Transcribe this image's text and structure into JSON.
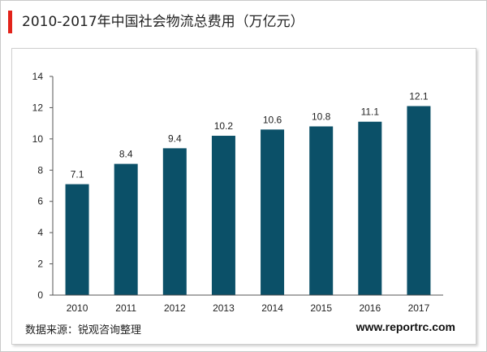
{
  "header": {
    "title": "2010-2017年中国社会物流总费用（万亿元）",
    "accent_color": "#e2231a"
  },
  "footer": {
    "source": "数据来源：锐观咨询整理",
    "website": "www.reportrc.com"
  },
  "chart_data": {
    "type": "bar",
    "title": "2010-2017年中国社会物流总费用（万亿元）",
    "categories": [
      "2010",
      "2011",
      "2012",
      "2013",
      "2014",
      "2015",
      "2016",
      "2017"
    ],
    "values": [
      7.1,
      8.4,
      9.4,
      10.2,
      10.6,
      10.8,
      11.1,
      12.1
    ],
    "data_labels": [
      "7.1",
      "8.4",
      "9.4",
      "10.2",
      "10.6",
      "10.8",
      "11.1",
      "12.1"
    ],
    "ylim": [
      0,
      14
    ],
    "yticks": [
      "0",
      "2",
      "4",
      "6",
      "8",
      "10",
      "12",
      "14"
    ],
    "xlabel": "",
    "ylabel": "",
    "bar_color": "#0b5068",
    "grid": false,
    "legend": "none"
  }
}
